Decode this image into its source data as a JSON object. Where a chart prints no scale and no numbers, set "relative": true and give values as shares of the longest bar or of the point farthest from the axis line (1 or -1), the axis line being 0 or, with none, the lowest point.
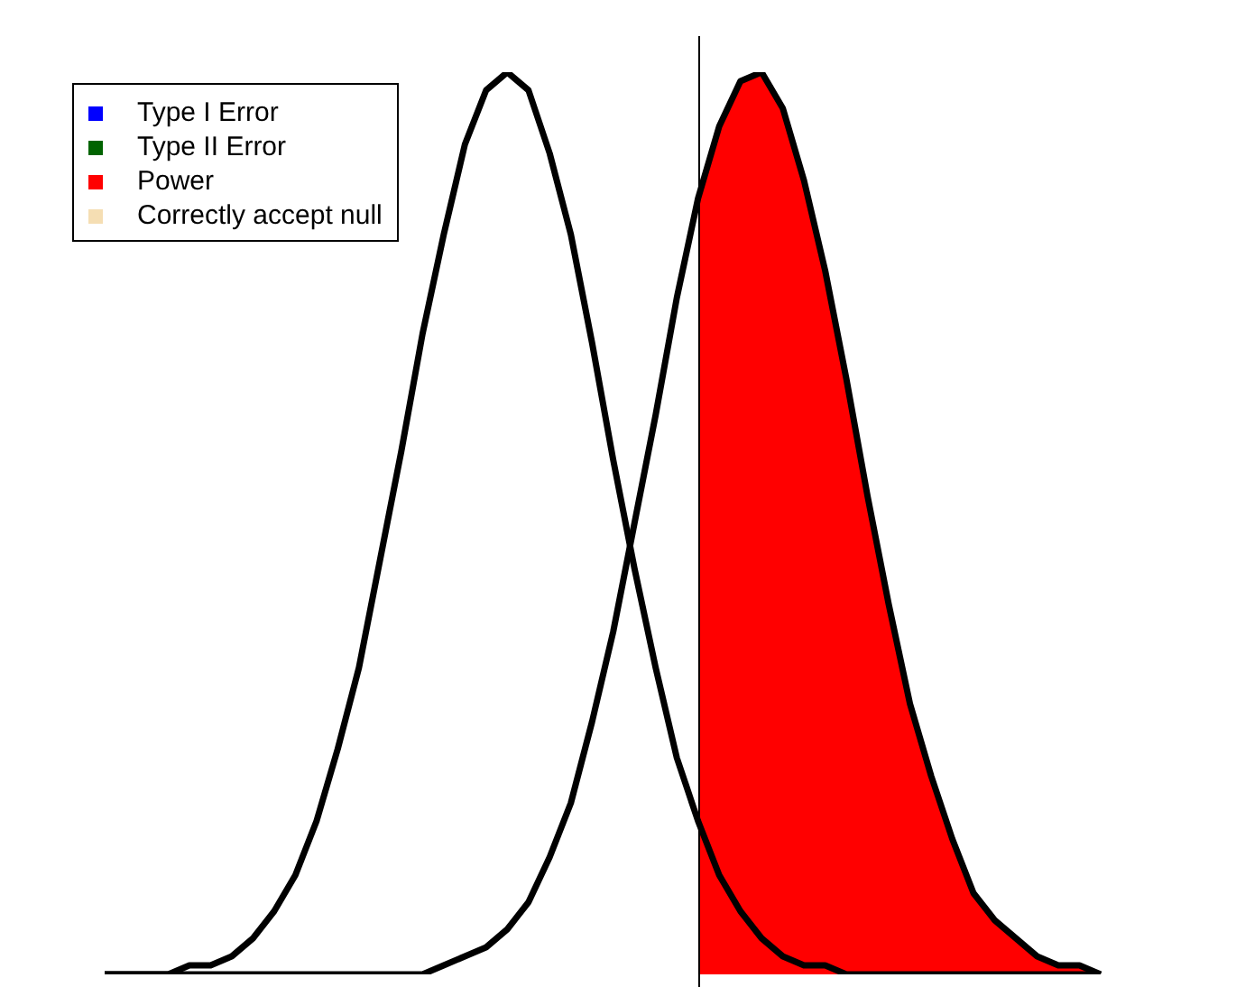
{
  "chart_data": {
    "type": "line",
    "relative": true,
    "grid": false,
    "legend": "top left",
    "marker": "none",
    "categories": [
      null,
      null,
      null,
      null,
      null,
      null,
      null,
      null,
      null,
      null,
      null,
      null,
      null,
      null,
      null,
      null,
      null,
      null,
      null,
      null,
      null,
      null,
      null,
      null,
      null,
      null,
      null,
      null,
      null,
      null,
      null,
      null,
      null,
      null,
      null,
      null,
      null,
      null,
      null,
      null,
      null,
      null,
      null,
      null,
      null,
      null,
      null,
      null
    ],
    "series": [
      {
        "color": "#000000",
        "values": [
          0,
          0,
          0,
          0,
          0.01,
          0.01,
          0.02,
          0.04,
          0.07,
          0.11,
          0.17,
          0.25,
          0.34,
          0.46,
          0.58,
          0.71,
          0.82,
          0.92,
          0.98,
          1,
          0.98,
          0.91,
          0.82,
          0.7,
          0.57,
          0.45,
          0.34,
          0.24,
          0.17,
          0.11,
          0.07,
          0.04,
          0.02,
          0.01,
          0.01,
          0,
          0,
          0,
          0,
          0,
          0,
          0,
          0,
          0,
          0,
          0,
          0,
          0
        ]
      },
      {
        "color": "#000000",
        "values": [
          0,
          0,
          0,
          0,
          0,
          0,
          0,
          0,
          0,
          0,
          0,
          0,
          0,
          0,
          0,
          0,
          0.01,
          0.02,
          0.03,
          0.05,
          0.08,
          0.13,
          0.19,
          0.28,
          0.38,
          0.5,
          0.62,
          0.75,
          0.86,
          0.94,
          0.99,
          1,
          0.96,
          0.88,
          0.78,
          0.66,
          0.53,
          0.41,
          0.3,
          0.22,
          0.15,
          0.09,
          0.06,
          0.04,
          0.02,
          0.01,
          0.01,
          0
        ]
      },
      {
        "name": "Type I Error",
        "type": "area",
        "color": "#0000ff",
        "values": [
          null,
          null,
          null,
          null,
          null,
          null,
          null,
          null,
          null,
          null,
          null,
          null,
          null,
          null,
          null,
          null,
          null,
          null,
          null,
          null,
          null,
          null,
          null,
          null,
          null,
          null,
          null,
          null,
          null,
          null,
          null,
          null,
          null,
          null,
          null,
          null,
          null,
          null,
          null,
          null,
          null,
          null,
          null,
          null,
          null,
          null,
          null,
          null
        ]
      },
      {
        "name": "Type II Error",
        "type": "area",
        "color": "#006400",
        "values": [
          null,
          null,
          null,
          null,
          null,
          null,
          null,
          null,
          null,
          null,
          null,
          null,
          null,
          null,
          null,
          null,
          null,
          null,
          null,
          null,
          null,
          null,
          null,
          null,
          null,
          null,
          null,
          null,
          null,
          null,
          null,
          null,
          null,
          null,
          null,
          null,
          null,
          null,
          null,
          null,
          null,
          null,
          null,
          null,
          null,
          null,
          null,
          null
        ]
      },
      {
        "name": "Power",
        "type": "area",
        "color": "#ff0000",
        "values": [
          null,
          null,
          null,
          null,
          null,
          null,
          null,
          null,
          null,
          null,
          null,
          null,
          null,
          null,
          null,
          null,
          null,
          null,
          null,
          null,
          null,
          null,
          null,
          null,
          null,
          null,
          null,
          null,
          0.86,
          0.94,
          0.99,
          1,
          0.96,
          0.88,
          0.78,
          0.66,
          0.53,
          0.41,
          0.3,
          0.22,
          0.15,
          0.09,
          0.06,
          0.04,
          0.02,
          0.01,
          0.01,
          0
        ]
      },
      {
        "name": "Correctly accept null",
        "type": "area",
        "color": "#f5deb3",
        "values": [
          null,
          null,
          null,
          null,
          null,
          null,
          null,
          null,
          null,
          null,
          null,
          null,
          null,
          null,
          null,
          null,
          null,
          null,
          null,
          null,
          null,
          null,
          null,
          null,
          null,
          null,
          null,
          null,
          null,
          null,
          null,
          null,
          null,
          null,
          null,
          null,
          null,
          null,
          null,
          null,
          null,
          null,
          null,
          null,
          null,
          null,
          null,
          null
        ]
      }
    ]
  }
}
